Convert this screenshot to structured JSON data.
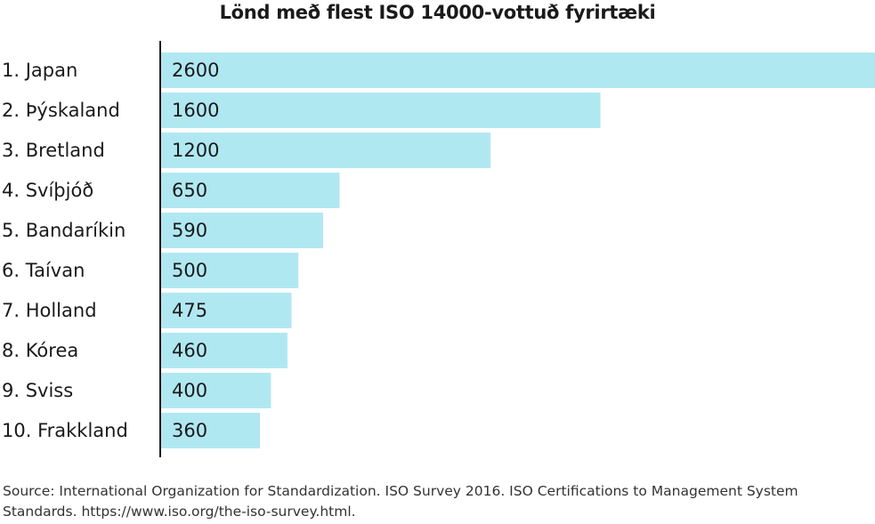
{
  "chart_data": {
    "type": "bar",
    "orientation": "horizontal",
    "title": "Lönd með flest ISO 14000-vottuð fyrirtæki",
    "categories": [
      "1. Japan",
      "2. Þýskaland",
      "3. Bretland",
      "4. Svíþjóð",
      "5. Bandaríkin",
      "6. Taívan",
      "7. Holland",
      "8. Kórea",
      "9. Sviss",
      "10. Frakkland"
    ],
    "values": [
      2600,
      1600,
      1200,
      650,
      590,
      500,
      475,
      460,
      400,
      360
    ],
    "value_labels": [
      "2600",
      "1600",
      "1200",
      "650",
      "590",
      "500",
      "475",
      "460",
      "400",
      "360"
    ],
    "xlim": [
      0,
      2600
    ],
    "grid": false,
    "legend": "none",
    "bar_color": "#b0e8f2",
    "axis_color": "#1a1a1a"
  },
  "source": "Source: International Organization for Standardization. ISO Survey 2016. ISO Certifications to Management System Standards. https://www.iso.org/the-iso-survey.html."
}
